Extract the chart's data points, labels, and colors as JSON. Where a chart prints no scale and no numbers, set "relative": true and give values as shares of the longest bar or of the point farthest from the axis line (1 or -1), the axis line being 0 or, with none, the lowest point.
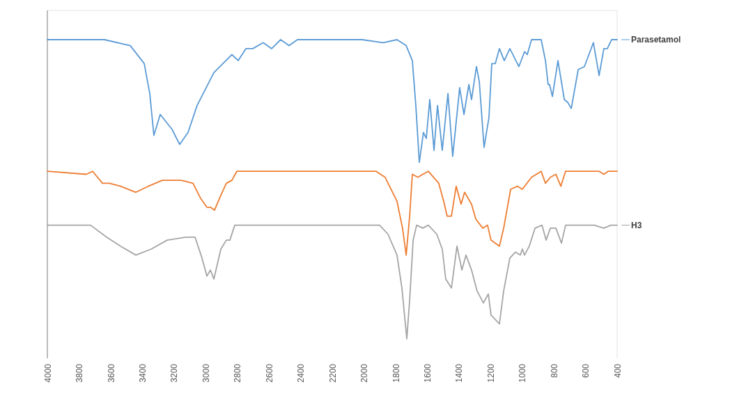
{
  "chart_data": {
    "type": "line",
    "relative": true,
    "legend": "right",
    "xlim": [
      4000,
      400
    ],
    "xticks": [
      4000,
      3800,
      3600,
      3400,
      3200,
      3000,
      2800,
      2600,
      2400,
      2200,
      2000,
      1800,
      1600,
      1400,
      1200,
      1000,
      800,
      600,
      400
    ],
    "series": [
      {
        "name": "Parasetamol",
        "color": "#5b9bd5",
        "x": [
          4000,
          3639,
          3476,
          3388,
          3353,
          3327,
          3287,
          3212,
          3164,
          3111,
          3054,
          2948,
          2891,
          2834,
          2794,
          2746,
          2702,
          2636,
          2583,
          2526,
          2473,
          2420,
          2011,
          1879,
          1791,
          1733,
          1694,
          1672,
          1650,
          1624,
          1606,
          1584,
          1557,
          1535,
          1505,
          1469,
          1439,
          1395,
          1368,
          1337,
          1320,
          1289,
          1271,
          1241,
          1210,
          1192,
          1170,
          1144,
          1113,
          1078,
          1021,
          985,
          968,
          941,
          880,
          853,
          836,
          827,
          809,
          774,
          734,
          712,
          690,
          646,
          607,
          550,
          514,
          484,
          462,
          435,
          400
        ],
        "values": [
          1.0,
          1.0,
          0.98,
          0.92,
          0.82,
          0.68,
          0.75,
          0.7,
          0.65,
          0.69,
          0.78,
          0.89,
          0.92,
          0.95,
          0.93,
          0.97,
          0.97,
          0.99,
          0.97,
          1.0,
          0.98,
          1.0,
          1.0,
          0.99,
          1.0,
          0.98,
          0.93,
          0.78,
          0.59,
          0.69,
          0.67,
          0.8,
          0.63,
          0.78,
          0.63,
          0.82,
          0.61,
          0.84,
          0.75,
          0.85,
          0.8,
          0.91,
          0.86,
          0.64,
          0.74,
          0.92,
          0.92,
          0.97,
          0.93,
          0.97,
          0.91,
          0.96,
          0.95,
          1.0,
          1.0,
          0.93,
          0.85,
          0.85,
          0.81,
          0.93,
          0.8,
          0.79,
          0.77,
          0.9,
          0.91,
          0.99,
          0.88,
          0.97,
          0.97,
          1.0,
          1.0
        ]
      },
      {
        "color": "#ed7d31",
        "x": [
          4000,
          3754,
          3714,
          3652,
          3608,
          3538,
          3441,
          3362,
          3274,
          3155,
          3080,
          3032,
          2992,
          2970,
          2944,
          2904,
          2869,
          2834,
          2803,
          2011,
          1923,
          1866,
          1791,
          1756,
          1733,
          1711,
          1694,
          1659,
          1628,
          1593,
          1527,
          1496,
          1474,
          1447,
          1417,
          1386,
          1364,
          1320,
          1293,
          1249,
          1219,
          1197,
          1144,
          1117,
          1073,
          1029,
          999,
          941,
          880,
          853,
          822,
          787,
          756,
          726,
          514,
          484,
          457,
          400
        ],
        "values": [
          0.56,
          0.55,
          0.56,
          0.52,
          0.52,
          0.51,
          0.49,
          0.51,
          0.53,
          0.53,
          0.52,
          0.47,
          0.44,
          0.44,
          0.43,
          0.48,
          0.52,
          0.53,
          0.56,
          0.56,
          0.56,
          0.54,
          0.46,
          0.37,
          0.28,
          0.41,
          0.55,
          0.54,
          0.55,
          0.56,
          0.52,
          0.46,
          0.41,
          0.41,
          0.51,
          0.45,
          0.49,
          0.45,
          0.4,
          0.37,
          0.38,
          0.33,
          0.31,
          0.37,
          0.5,
          0.51,
          0.5,
          0.54,
          0.56,
          0.52,
          0.54,
          0.55,
          0.51,
          0.56,
          0.56,
          0.55,
          0.56,
          0.56
        ]
      },
      {
        "name": "H3",
        "color": "#a5a5a5",
        "x": [
          4000,
          3802,
          3727,
          3626,
          3538,
          3441,
          3344,
          3243,
          3124,
          3067,
          3023,
          2992,
          2970,
          2948,
          2904,
          2869,
          2847,
          2816,
          2011,
          1901,
          1848,
          1791,
          1760,
          1729,
          1711,
          1689,
          1667,
          1628,
          1593,
          1540,
          1505,
          1483,
          1447,
          1412,
          1381,
          1355,
          1320,
          1285,
          1245,
          1214,
          1197,
          1144,
          1117,
          1078,
          1043,
          1012,
          999,
          985,
          955,
          919,
          875,
          849,
          822,
          787,
          752,
          726,
          545,
          484,
          440,
          400
        ],
        "values": [
          0.38,
          0.38,
          0.38,
          0.34,
          0.31,
          0.28,
          0.3,
          0.33,
          0.34,
          0.34,
          0.27,
          0.21,
          0.23,
          0.2,
          0.3,
          0.33,
          0.33,
          0.38,
          0.38,
          0.38,
          0.35,
          0.28,
          0.17,
          0.0,
          0.13,
          0.33,
          0.38,
          0.37,
          0.38,
          0.35,
          0.3,
          0.2,
          0.17,
          0.31,
          0.23,
          0.28,
          0.23,
          0.16,
          0.12,
          0.15,
          0.08,
          0.05,
          0.16,
          0.27,
          0.29,
          0.28,
          0.3,
          0.28,
          0.31,
          0.37,
          0.38,
          0.33,
          0.37,
          0.37,
          0.32,
          0.38,
          0.38,
          0.37,
          0.38,
          0.38
        ]
      }
    ]
  }
}
